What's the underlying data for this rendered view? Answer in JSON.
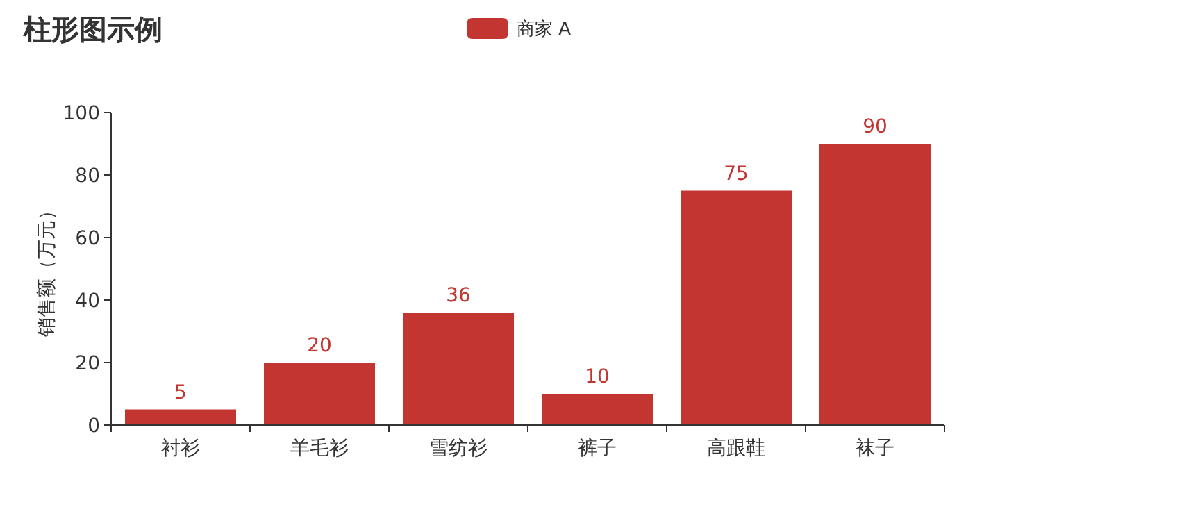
{
  "chart_data": {
    "type": "bar",
    "title": "柱形图示例",
    "ylabel": "销售额（万元）",
    "categories": [
      "衬衫",
      "羊毛衫",
      "雪纺衫",
      "裤子",
      "高跟鞋",
      "袜子"
    ],
    "series": [
      {
        "name": "商家 A",
        "color": "#c23531",
        "values": [
          5,
          20,
          36,
          10,
          75,
          90
        ]
      }
    ],
    "ylim": [
      0,
      100
    ],
    "yticks": [
      0,
      20,
      40,
      60,
      80,
      100
    ],
    "data_labels": true,
    "legend": "top"
  }
}
